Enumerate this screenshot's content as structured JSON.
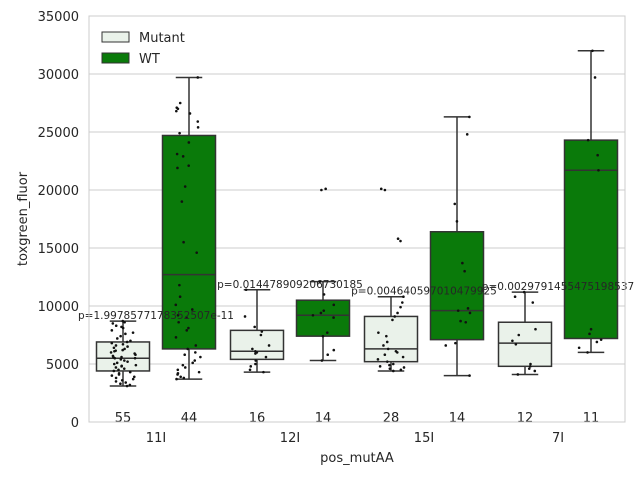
{
  "chart_data": {
    "type": "box",
    "xlabel": "pos_mutAA",
    "ylabel": "toxgreen_fluor",
    "ylim": [
      0,
      35000
    ],
    "yticks": [
      0,
      5000,
      10000,
      15000,
      20000,
      25000,
      30000,
      35000
    ],
    "grid": "horizontal",
    "legend_placement": "top-left",
    "categories": [
      "11I",
      "12I",
      "15I",
      "7I"
    ],
    "series": [
      {
        "name": "Mutant",
        "color": "#eaf2ea"
      },
      {
        "name": "WT",
        "color": "#0a7a0a"
      }
    ],
    "boxes": {
      "Mutant": [
        {
          "q1": 4400,
          "median": 5500,
          "q3": 6900,
          "whisker_low": 3100,
          "whisker_high": 8700,
          "n": 55
        },
        {
          "q1": 5400,
          "median": 6100,
          "q3": 7900,
          "whisker_low": 4300,
          "whisker_high": 11400,
          "n": 16
        },
        {
          "q1": 5200,
          "median": 6300,
          "q3": 9100,
          "whisker_low": 4400,
          "whisker_high": 10800,
          "n": 28
        },
        {
          "q1": 4800,
          "median": 6800,
          "q3": 8600,
          "whisker_low": 4100,
          "whisker_high": 11200,
          "n": 12
        }
      ],
      "WT": [
        {
          "q1": 6300,
          "median": 12700,
          "q3": 24700,
          "whisker_low": 3700,
          "whisker_high": 29700,
          "n": 44
        },
        {
          "q1": 7400,
          "median": 9200,
          "q3": 10500,
          "whisker_low": 5300,
          "whisker_high": 12100,
          "n": 14
        },
        {
          "q1": 7100,
          "median": 9600,
          "q3": 16400,
          "whisker_low": 4000,
          "whisker_high": 26300,
          "n": 14
        },
        {
          "q1": 7200,
          "median": 21700,
          "q3": 24300,
          "whisker_low": 6000,
          "whisker_high": 32000,
          "n": 11
        }
      ]
    },
    "points": {
      "Mutant": [
        [
          8700,
          8600,
          8500,
          8300,
          8200,
          8100,
          7900,
          7700,
          7600,
          7400,
          7200,
          7000,
          6900,
          6800,
          6700,
          6600,
          6500,
          6400,
          6300,
          6200,
          6100,
          6000,
          5900,
          5800,
          5700,
          5600,
          5500,
          5500,
          5400,
          5300,
          5200,
          5100,
          5000,
          4900,
          4800,
          4700,
          4600,
          4500,
          4400,
          4300,
          4200,
          4100,
          4000,
          3900,
          3800,
          3700,
          3600,
          3500,
          3400,
          3300,
          3200,
          3100,
          5600,
          6150,
          4850
        ],
        [
          11400,
          9100,
          8200,
          7800,
          7500,
          6600,
          6300,
          6100,
          6000,
          5900,
          5600,
          5300,
          5000,
          4800,
          4500,
          4300
        ],
        [
          20100,
          20000,
          15800,
          15600,
          10800,
          10300,
          9900,
          9400,
          9100,
          8800,
          7700,
          7400,
          6900,
          6600,
          6300,
          6100,
          6000,
          5800,
          5600,
          5400,
          5200,
          5000,
          4900,
          4800,
          4700,
          4600,
          4500,
          4400
        ],
        [
          11200,
          10800,
          10300,
          8000,
          7500,
          7000,
          6700,
          5000,
          4800,
          4600,
          4400,
          4100
        ]
      ],
      "WT": [
        [
          29700,
          27500,
          27100,
          27000,
          26800,
          26600,
          25900,
          25400,
          24900,
          24100,
          23100,
          22900,
          22100,
          21900,
          20300,
          19000,
          15500,
          14600,
          11800,
          10800,
          10100,
          9700,
          9200,
          9000,
          8600,
          8100,
          7900,
          7300,
          6600,
          6300,
          6000,
          5800,
          5600,
          5300,
          5100,
          4900,
          4700,
          4500,
          4300,
          4200,
          4100,
          3900,
          3800,
          3700
        ],
        [
          20100,
          20000,
          12100,
          11000,
          10100,
          9600,
          9400,
          9200,
          9000,
          7700,
          7400,
          6200,
          5800,
          5300
        ],
        [
          26300,
          24800,
          18800,
          17300,
          13700,
          13000,
          9800,
          9600,
          9400,
          8700,
          8600,
          6800,
          6600,
          4000
        ],
        [
          32000,
          29700,
          24300,
          23000,
          21700,
          8000,
          7600,
          7100,
          6900,
          6400,
          6000
        ]
      ]
    },
    "pvalues": [
      "p=1.9978577178352507e-11",
      "p=0.014478909206730185",
      "p=0.004640597010479925",
      "p=0.0029791455475198537"
    ]
  }
}
